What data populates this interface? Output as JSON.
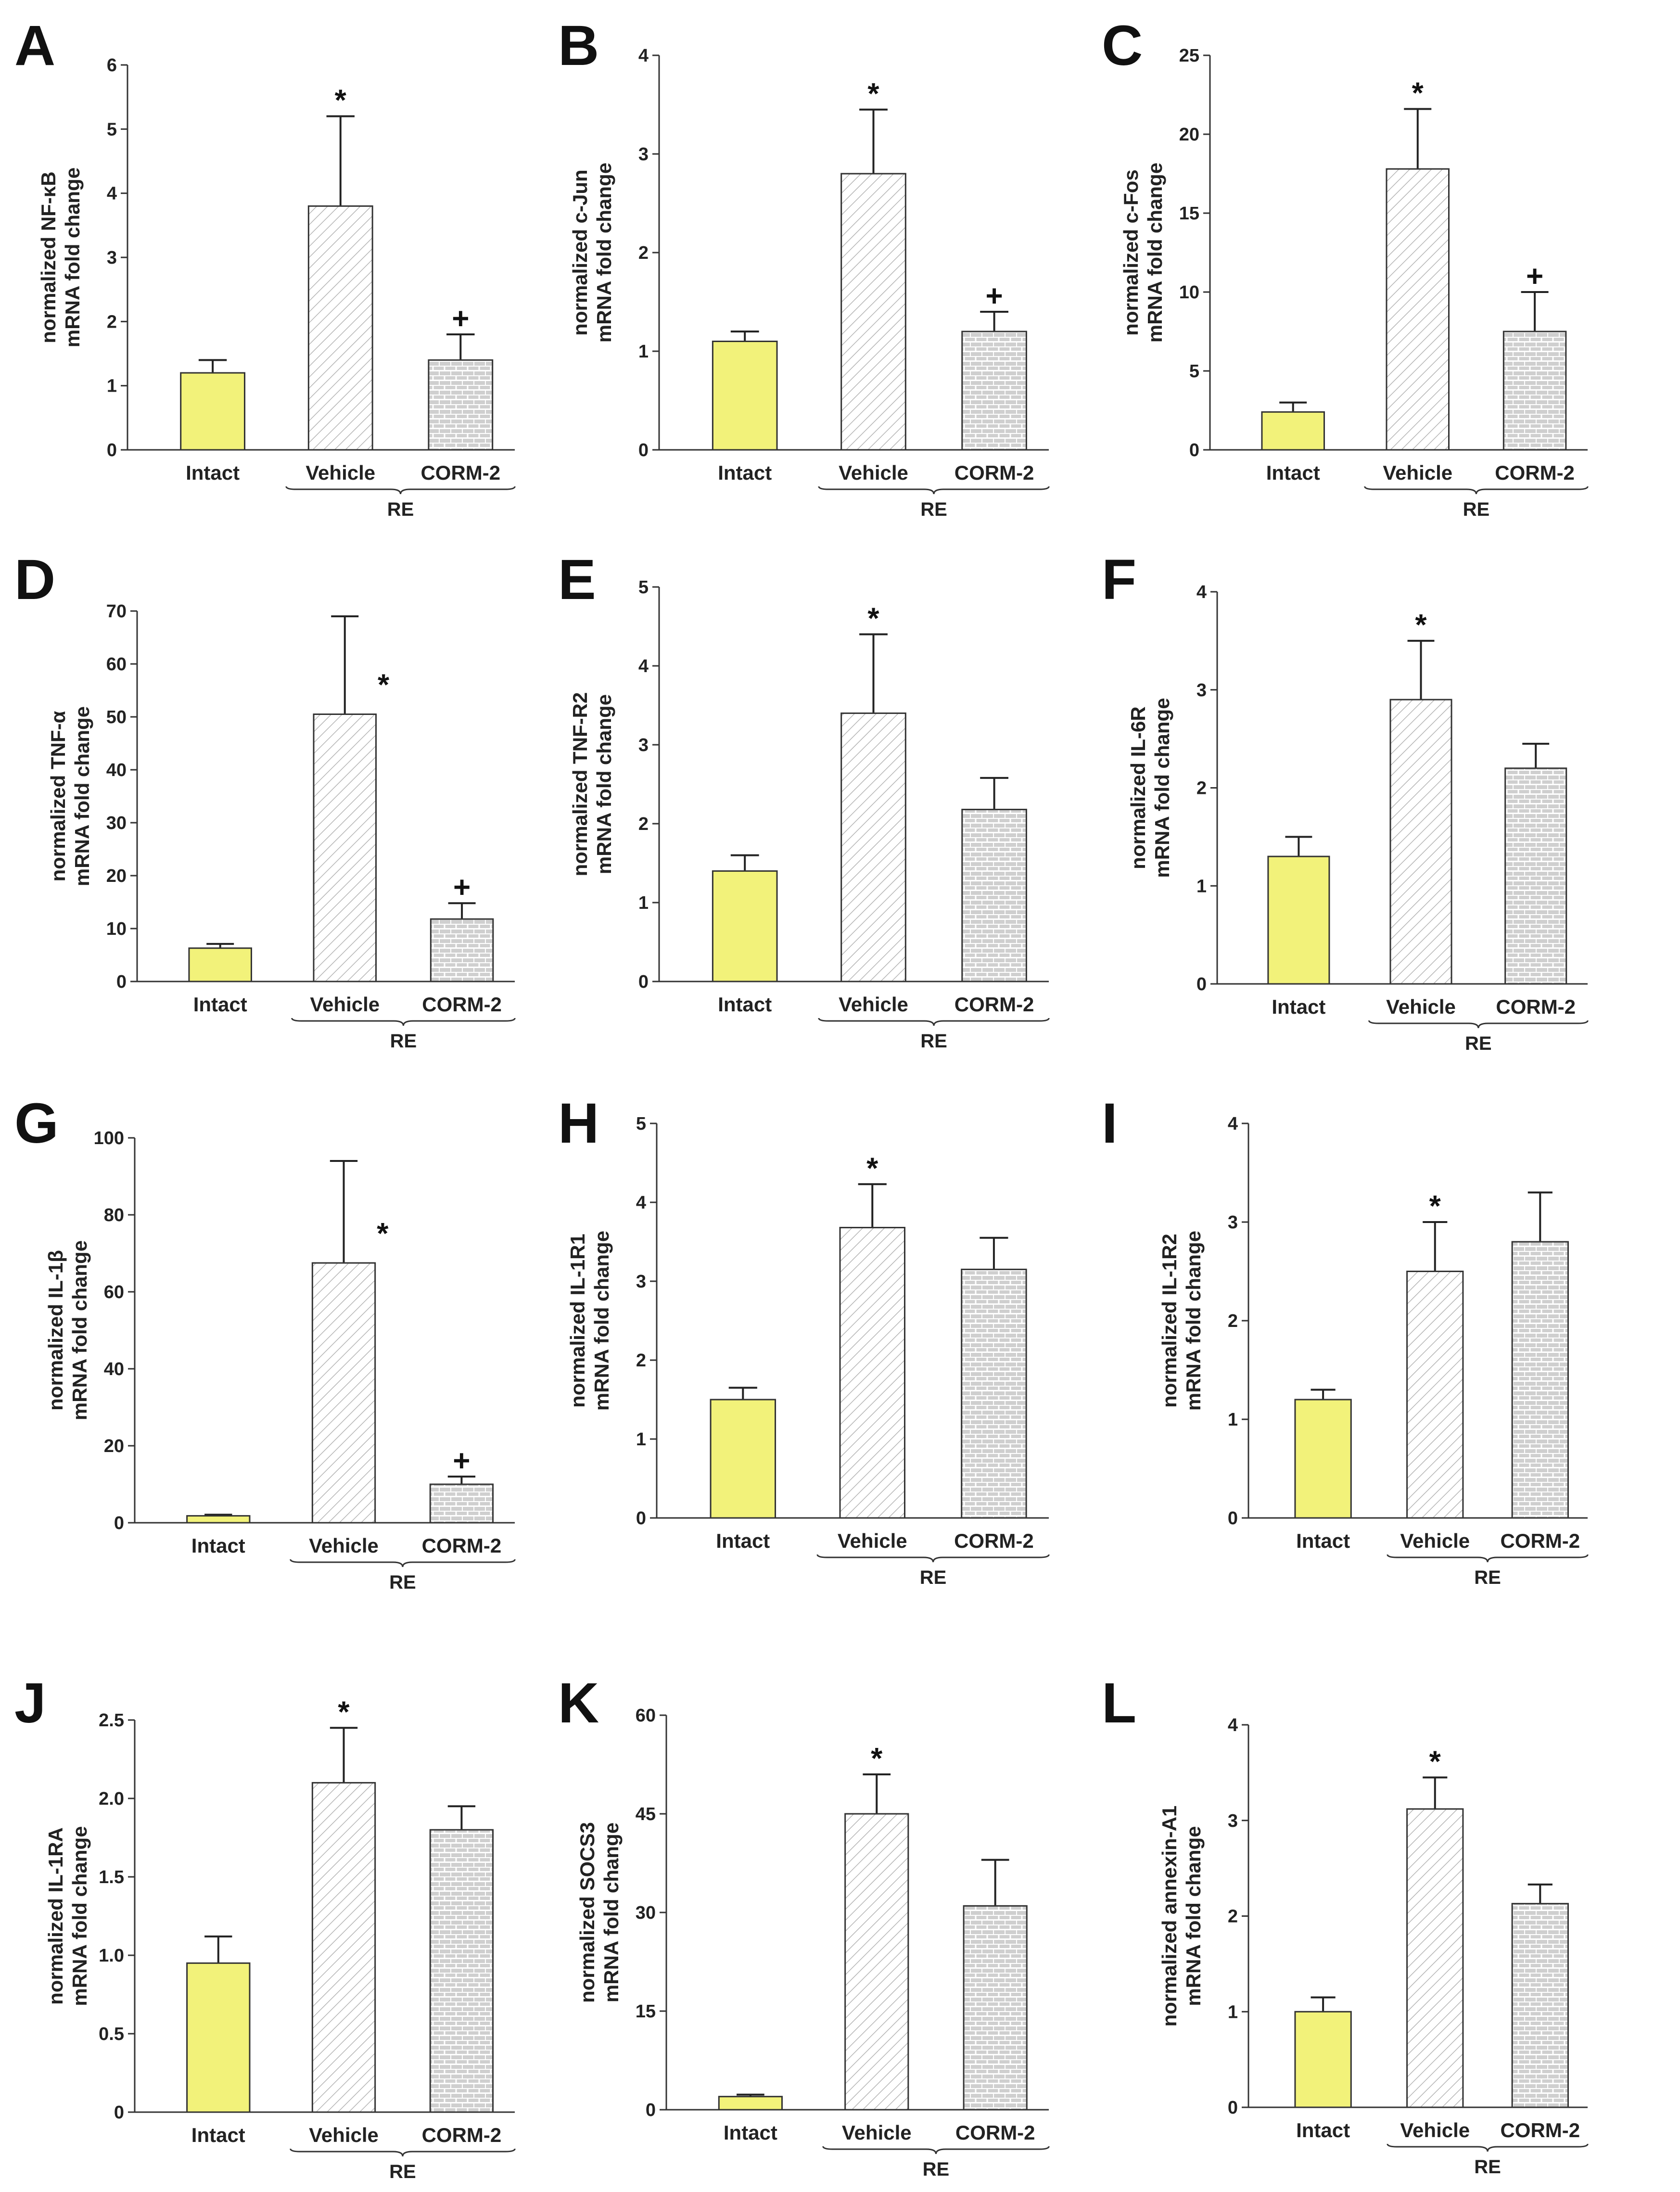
{
  "figure": {
    "bar_colors": {
      "Intact": "#f2f27a",
      "Vehicle": "#ffffff",
      "CORM-2": "#cfcfcf"
    },
    "pattern_colors": {
      "hatch": "#b5b5b5",
      "brick_fill": "#cfcfcf",
      "brick_line": "#ffffff"
    }
  },
  "chart_data": [
    {
      "type": "bar",
      "panel": "A",
      "ylabel_lines": [
        "normalized NF-κB",
        "mRNA fold change"
      ],
      "categories": [
        "Intact",
        "Vehicle",
        "CORM-2"
      ],
      "group_label": "RE",
      "ylim": [
        0,
        6
      ],
      "yticks": [
        "0",
        "1",
        "2",
        "3",
        "4",
        "5",
        "6"
      ],
      "values": [
        1.2,
        3.8,
        1.4
      ],
      "errors": [
        0.2,
        1.4,
        0.4
      ],
      "annotations": [
        "",
        "*",
        "+"
      ]
    },
    {
      "type": "bar",
      "panel": "B",
      "ylabel_lines": [
        "normalized c-Jun",
        "mRNA fold change"
      ],
      "categories": [
        "Intact",
        "Vehicle",
        "CORM-2"
      ],
      "group_label": "RE",
      "ylim": [
        0,
        4
      ],
      "yticks": [
        "0",
        "1",
        "2",
        "3",
        "4"
      ],
      "values": [
        1.1,
        2.8,
        1.2
      ],
      "errors": [
        0.1,
        0.65,
        0.2
      ],
      "annotations": [
        "",
        "*",
        "+"
      ]
    },
    {
      "type": "bar",
      "panel": "C",
      "ylabel_lines": [
        "normalized c-Fos",
        "mRNA fold change"
      ],
      "categories": [
        "Intact",
        "Vehicle",
        "CORM-2"
      ],
      "group_label": "RE",
      "ylim": [
        0,
        25
      ],
      "yticks": [
        "0",
        "5",
        "10",
        "15",
        "20",
        "25"
      ],
      "values": [
        2.4,
        17.8,
        7.5
      ],
      "errors": [
        0.6,
        3.8,
        2.5
      ],
      "annotations": [
        "",
        "*",
        "+"
      ]
    },
    {
      "type": "bar",
      "panel": "D",
      "ylabel_lines": [
        "normalized TNF-α",
        "mRNA fold change"
      ],
      "categories": [
        "Intact",
        "Vehicle",
        "CORM-2"
      ],
      "group_label": "RE",
      "ylim": [
        0,
        70
      ],
      "yticks": [
        "0",
        "10",
        "20",
        "30",
        "40",
        "50",
        "60",
        "70"
      ],
      "values": [
        6.3,
        50.5,
        11.8
      ],
      "errors": [
        0.8,
        18.5,
        3.0
      ],
      "annotations": [
        "",
        "*",
        "+"
      ]
    },
    {
      "type": "bar",
      "panel": "E",
      "ylabel_lines": [
        "normalized TNF-R2",
        "mRNA fold change"
      ],
      "categories": [
        "Intact",
        "Vehicle",
        "CORM-2"
      ],
      "group_label": "RE",
      "ylim": [
        0,
        5
      ],
      "yticks": [
        "0",
        "1",
        "2",
        "3",
        "4",
        "5"
      ],
      "values": [
        1.4,
        3.4,
        2.18
      ],
      "errors": [
        0.2,
        1.0,
        0.4
      ],
      "annotations": [
        "",
        "*",
        ""
      ]
    },
    {
      "type": "bar",
      "panel": "F",
      "ylabel_lines": [
        "normalized IL-6R",
        "mRNA fold change"
      ],
      "categories": [
        "Intact",
        "Vehicle",
        "CORM-2"
      ],
      "group_label": "RE",
      "ylim": [
        0,
        4
      ],
      "yticks": [
        "0",
        "1",
        "2",
        "3",
        "4"
      ],
      "values": [
        1.3,
        2.9,
        2.2
      ],
      "errors": [
        0.2,
        0.6,
        0.25
      ],
      "annotations": [
        "",
        "*",
        ""
      ]
    },
    {
      "type": "bar",
      "panel": "G",
      "ylabel_lines": [
        "normalized IL-1β",
        "mRNA fold change"
      ],
      "categories": [
        "Intact",
        "Vehicle",
        "CORM-2"
      ],
      "group_label": "RE",
      "ylim": [
        0,
        100
      ],
      "yticks": [
        "0",
        "20",
        "40",
        "60",
        "80",
        "100"
      ],
      "values": [
        1.8,
        67.5,
        10.0
      ],
      "errors": [
        0.3,
        26.5,
        2.0
      ],
      "annotations": [
        "",
        "*",
        "+"
      ]
    },
    {
      "type": "bar",
      "panel": "H",
      "ylabel_lines": [
        "normalized IL-1R1",
        "mRNA fold change"
      ],
      "categories": [
        "Intact",
        "Vehicle",
        "CORM-2"
      ],
      "group_label": "RE",
      "ylim": [
        0,
        5
      ],
      "yticks": [
        "0",
        "1",
        "2",
        "3",
        "4",
        "5"
      ],
      "values": [
        1.5,
        3.68,
        3.15
      ],
      "errors": [
        0.15,
        0.55,
        0.4
      ],
      "annotations": [
        "",
        "*",
        ""
      ]
    },
    {
      "type": "bar",
      "panel": "I",
      "ylabel_lines": [
        "normalized IL-1R2",
        "mRNA fold change"
      ],
      "categories": [
        "Intact",
        "Vehicle",
        "CORM-2"
      ],
      "group_label": "RE",
      "ylim": [
        0,
        4
      ],
      "yticks": [
        "0",
        "1",
        "2",
        "3",
        "4"
      ],
      "values": [
        1.2,
        2.5,
        2.8
      ],
      "errors": [
        0.1,
        0.5,
        0.5
      ],
      "annotations": [
        "",
        "*",
        ""
      ]
    },
    {
      "type": "bar",
      "panel": "J",
      "ylabel_lines": [
        "normalized IL-1RA",
        "mRNA fold change"
      ],
      "categories": [
        "Intact",
        "Vehicle",
        "CORM-2"
      ],
      "group_label": "RE",
      "ylim": [
        0,
        2.5
      ],
      "yticks": [
        "0",
        "0.5",
        "1.0",
        "1.5",
        "2.0",
        "2.5"
      ],
      "values": [
        0.95,
        2.1,
        1.8
      ],
      "errors": [
        0.17,
        0.35,
        0.15
      ],
      "annotations": [
        "",
        "*",
        ""
      ]
    },
    {
      "type": "bar",
      "panel": "K",
      "ylabel_lines": [
        "normalized SOCS3",
        "mRNA fold change"
      ],
      "categories": [
        "Intact",
        "Vehicle",
        "CORM-2"
      ],
      "group_label": "RE",
      "ylim": [
        0,
        60
      ],
      "yticks": [
        "0",
        "15",
        "30",
        "45",
        "60"
      ],
      "values": [
        2.0,
        45.0,
        31.0
      ],
      "errors": [
        0.3,
        6.0,
        7.0
      ],
      "annotations": [
        "",
        "*",
        ""
      ]
    },
    {
      "type": "bar",
      "panel": "L",
      "ylabel_lines": [
        "normalized annexin-A1",
        "mRNA fold change"
      ],
      "categories": [
        "Intact",
        "Vehicle",
        "CORM-2"
      ],
      "group_label": "RE",
      "ylim": [
        0,
        4
      ],
      "yticks": [
        "0",
        "1",
        "2",
        "3",
        "4"
      ],
      "values": [
        1.0,
        3.12,
        2.13
      ],
      "errors": [
        0.15,
        0.33,
        0.2
      ],
      "annotations": [
        "",
        "*",
        ""
      ]
    }
  ]
}
